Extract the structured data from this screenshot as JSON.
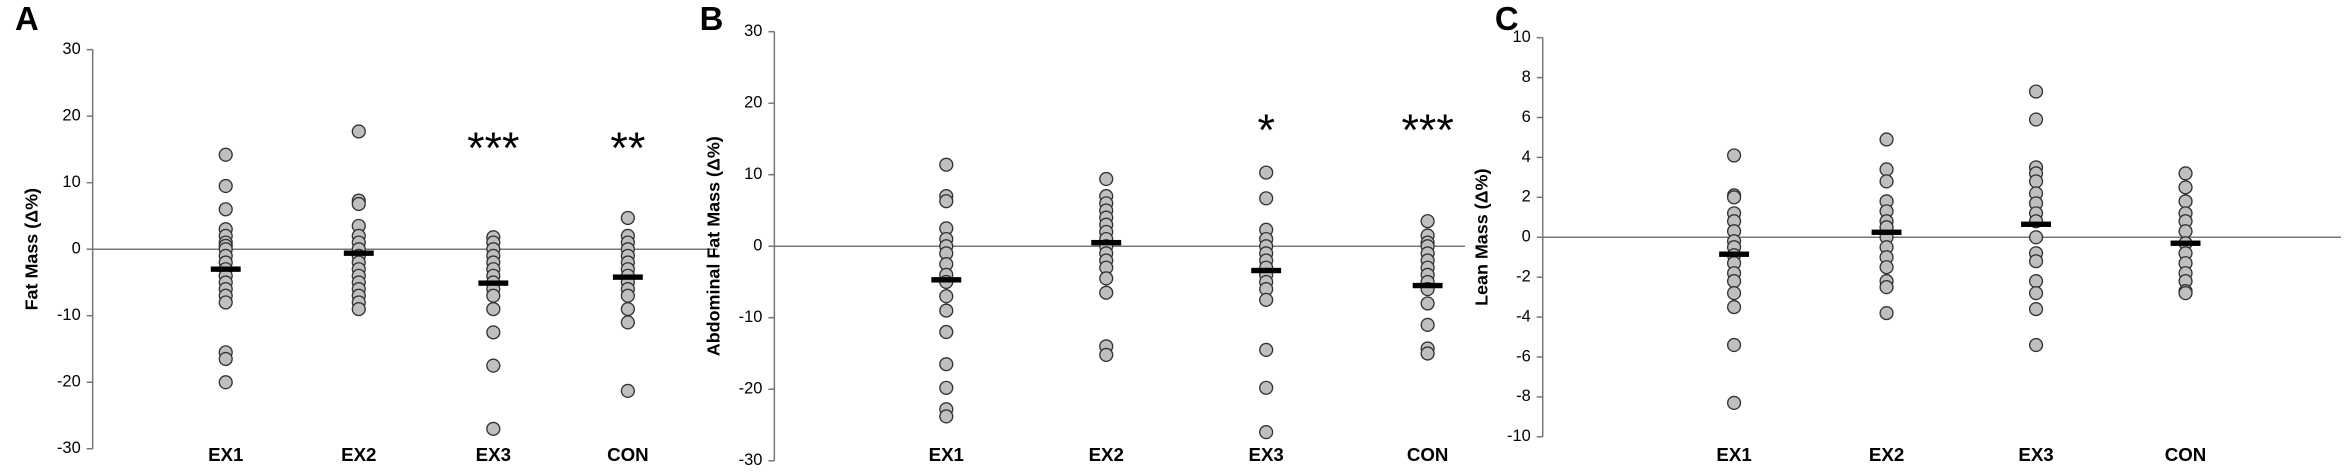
{
  "chart_data": [
    {
      "type": "strip",
      "panel_label": "A",
      "ylabel": "Fat Mass (Δ%)",
      "categories": [
        "EX1",
        "EX2",
        "EX3",
        "CON"
      ],
      "values": [
        [
          14.2,
          9.5,
          6,
          3,
          2,
          1,
          0.5,
          0,
          -1,
          -2,
          -3,
          -4,
          -5,
          -6,
          -7,
          -8,
          -15.5,
          -16.5,
          -20
        ],
        [
          17.7,
          7.3,
          6.8,
          3.5,
          2,
          1,
          0,
          -1,
          -2,
          -3,
          -4,
          -5,
          -6,
          -7,
          -8,
          -9
        ],
        [
          1.8,
          1,
          0,
          -1,
          -2,
          -3,
          -4,
          -5,
          -6,
          -7,
          -9,
          -12.5,
          -17.5,
          -27
        ],
        [
          4.7,
          2,
          1,
          0,
          -1,
          -2,
          -3,
          -4,
          -5,
          -6,
          -7,
          -9,
          -11,
          -21.3
        ]
      ],
      "means": [
        -3,
        -0.6,
        -5.1,
        -4.2
      ],
      "annotations": [
        null,
        null,
        "***",
        "**"
      ],
      "color": "#bfbfbf",
      "ylim": [
        -30,
        30
      ],
      "yticks": [
        -30,
        -20,
        -10,
        0,
        10,
        20,
        30
      ]
    },
    {
      "type": "strip",
      "panel_label": "B",
      "ylabel": "Abdominal Fat Mass (Δ%)",
      "categories": [
        "EX1",
        "EX2",
        "EX3",
        "CON"
      ],
      "values": [
        [
          11.4,
          7,
          6.3,
          2.5,
          1,
          0,
          -1,
          -2.5,
          -4,
          -5,
          -7,
          -9,
          -12,
          -16.5,
          -19.8,
          -22.8,
          -23.8
        ],
        [
          9.4,
          7,
          6,
          5,
          4,
          3,
          2,
          1,
          0,
          -1,
          -2,
          -3,
          -4.5,
          -6.5,
          -14,
          -15.2
        ],
        [
          10.3,
          6.7,
          2.3,
          1,
          0,
          -1,
          -2,
          -3,
          -4,
          -5,
          -6,
          -7.5,
          -14.5,
          -19.8,
          -26
        ],
        [
          3.5,
          1.5,
          0.5,
          0,
          -1,
          -2,
          -3,
          -4,
          -5,
          -6,
          -8,
          -11,
          -14.3,
          -15
        ]
      ],
      "means": [
        -4.7,
        0.5,
        -3.4,
        -5.5
      ],
      "annotations": [
        null,
        null,
        "*",
        "***"
      ],
      "color": "#bfbfbf",
      "ylim": [
        -30,
        30
      ],
      "yticks": [
        -30,
        -20,
        -10,
        0,
        10,
        20,
        30
      ]
    },
    {
      "type": "strip",
      "panel_label": "C",
      "ylabel": "Lean Mass (Δ%)",
      "categories": [
        "EX1",
        "EX2",
        "EX3",
        "CON"
      ],
      "values": [
        [
          4.1,
          2.1,
          2,
          1.2,
          0.8,
          0.3,
          -0.2,
          -0.5,
          -0.9,
          -1.3,
          -1.8,
          -2.2,
          -2.8,
          -3.5,
          -5.4,
          -8.3
        ],
        [
          4.9,
          3.4,
          2.8,
          1.8,
          1.3,
          0.8,
          0.5,
          0,
          -0.5,
          -1,
          -1.5,
          -2.2,
          -2.5,
          -3.8
        ],
        [
          7.3,
          5.9,
          3.5,
          3.2,
          2.8,
          2.2,
          1.7,
          1.2,
          0.8,
          0,
          -0.8,
          -1.2,
          -2.2,
          -2.8,
          -3.6,
          -5.4
        ],
        [
          3.2,
          2.5,
          1.8,
          1.2,
          0.8,
          0.3,
          -0.3,
          -0.8,
          -1.3,
          -1.8,
          -2.2,
          -2.7,
          -2.8
        ]
      ],
      "means": [
        -0.85,
        0.25,
        0.65,
        -0.3
      ],
      "annotations": [
        null,
        null,
        null,
        null
      ],
      "color": "#bfbfbf",
      "ylim": [
        -10,
        10
      ],
      "yticks": [
        -10,
        -8,
        -6,
        -4,
        -2,
        0,
        2,
        4,
        6,
        8,
        10
      ]
    }
  ]
}
